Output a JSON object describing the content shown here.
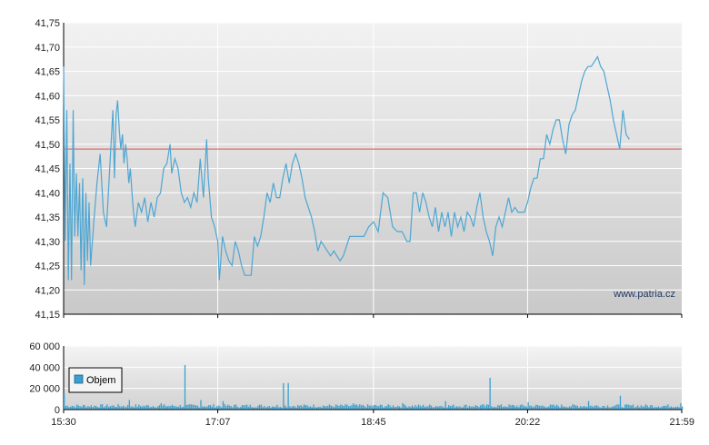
{
  "watermark": "www.patria.cz",
  "colors": {
    "price_line": "#4ea6d2",
    "reference_line": "#e05050",
    "volume_bar": "#3b9fd0",
    "grid": "#ffffff",
    "panel_top": "#f2f2f2",
    "panel_bottom": "#c9c9c9"
  },
  "chart_data": [
    {
      "type": "line",
      "name": "price",
      "title": "",
      "ylim": [
        41.15,
        41.75
      ],
      "y_ticks": [
        "41,15",
        "41,20",
        "41,25",
        "41,30",
        "41,35",
        "41,40",
        "41,45",
        "41,50",
        "41,55",
        "41,60",
        "41,65",
        "41,70",
        "41,75"
      ],
      "x_ticks": [
        "15:30",
        "17:07",
        "18:45",
        "20:22",
        "21:59"
      ],
      "xlim": [
        "15:30",
        "21:59"
      ],
      "grid": true,
      "reference_line": 41.49,
      "series": [
        {
          "values": [
            [
              "15:30",
              41.66
            ],
            [
              "15:31",
              41.3
            ],
            [
              "15:32",
              41.57
            ],
            [
              "15:33",
              41.22
            ],
            [
              "15:34",
              41.46
            ],
            [
              "15:35",
              41.22
            ],
            [
              "15:36",
              41.57
            ],
            [
              "15:37",
              41.31
            ],
            [
              "15:38",
              41.44
            ],
            [
              "15:39",
              41.31
            ],
            [
              "15:40",
              41.42
            ],
            [
              "15:41",
              41.24
            ],
            [
              "15:42",
              41.43
            ],
            [
              "15:43",
              41.21
            ],
            [
              "15:44",
              41.4
            ],
            [
              "15:45",
              41.26
            ],
            [
              "15:46",
              41.38
            ],
            [
              "15:47",
              41.25
            ],
            [
              "15:49",
              41.34
            ],
            [
              "15:51",
              41.42
            ],
            [
              "15:53",
              41.48
            ],
            [
              "15:55",
              41.36
            ],
            [
              "15:57",
              41.33
            ],
            [
              "15:59",
              41.45
            ],
            [
              "16:01",
              41.57
            ],
            [
              "16:02",
              41.43
            ],
            [
              "16:03",
              41.56
            ],
            [
              "16:04",
              41.59
            ],
            [
              "16:05",
              41.53
            ],
            [
              "16:06",
              41.49
            ],
            [
              "16:07",
              41.52
            ],
            [
              "16:08",
              41.46
            ],
            [
              "16:09",
              41.5
            ],
            [
              "16:10",
              41.47
            ],
            [
              "16:11",
              41.42
            ],
            [
              "16:12",
              41.45
            ],
            [
              "16:13",
              41.4
            ],
            [
              "16:14",
              41.36
            ],
            [
              "16:15",
              41.33
            ],
            [
              "16:17",
              41.38
            ],
            [
              "16:19",
              41.36
            ],
            [
              "16:21",
              41.39
            ],
            [
              "16:23",
              41.34
            ],
            [
              "16:25",
              41.38
            ],
            [
              "16:27",
              41.35
            ],
            [
              "16:29",
              41.39
            ],
            [
              "16:31",
              41.4
            ],
            [
              "16:33",
              41.45
            ],
            [
              "16:35",
              41.46
            ],
            [
              "16:37",
              41.5
            ],
            [
              "16:38",
              41.44
            ],
            [
              "16:40",
              41.47
            ],
            [
              "16:42",
              41.45
            ],
            [
              "16:44",
              41.4
            ],
            [
              "16:46",
              41.38
            ],
            [
              "16:48",
              41.39
            ],
            [
              "16:50",
              41.37
            ],
            [
              "16:52",
              41.4
            ],
            [
              "16:54",
              41.38
            ],
            [
              "16:56",
              41.47
            ],
            [
              "16:58",
              41.39
            ],
            [
              "17:00",
              41.51
            ],
            [
              "17:01",
              41.43
            ],
            [
              "17:03",
              41.35
            ],
            [
              "17:05",
              41.33
            ],
            [
              "17:07",
              41.3
            ],
            [
              "17:08",
              41.22
            ],
            [
              "17:10",
              41.31
            ],
            [
              "17:12",
              41.28
            ],
            [
              "17:14",
              41.26
            ],
            [
              "17:16",
              41.25
            ],
            [
              "17:18",
              41.3
            ],
            [
              "17:20",
              41.28
            ],
            [
              "17:22",
              41.25
            ],
            [
              "17:24",
              41.23
            ],
            [
              "17:26",
              41.23
            ],
            [
              "17:28",
              41.23
            ],
            [
              "17:30",
              41.31
            ],
            [
              "17:32",
              41.29
            ],
            [
              "17:34",
              41.31
            ],
            [
              "17:36",
              41.35
            ],
            [
              "17:38",
              41.4
            ],
            [
              "17:40",
              41.38
            ],
            [
              "17:42",
              41.42
            ],
            [
              "17:44",
              41.39
            ],
            [
              "17:46",
              41.39
            ],
            [
              "17:48",
              41.43
            ],
            [
              "17:50",
              41.46
            ],
            [
              "17:52",
              41.42
            ],
            [
              "17:54",
              41.46
            ],
            [
              "17:56",
              41.48
            ],
            [
              "17:58",
              41.46
            ],
            [
              "18:00",
              41.43
            ],
            [
              "18:02",
              41.39
            ],
            [
              "18:04",
              41.37
            ],
            [
              "18:06",
              41.35
            ],
            [
              "18:08",
              41.32
            ],
            [
              "18:10",
              41.28
            ],
            [
              "18:12",
              41.3
            ],
            [
              "18:14",
              41.29
            ],
            [
              "18:16",
              41.28
            ],
            [
              "18:18",
              41.27
            ],
            [
              "18:20",
              41.28
            ],
            [
              "18:22",
              41.27
            ],
            [
              "18:24",
              41.26
            ],
            [
              "18:26",
              41.27
            ],
            [
              "18:28",
              41.29
            ],
            [
              "18:30",
              41.31
            ],
            [
              "18:33",
              41.31
            ],
            [
              "18:36",
              41.31
            ],
            [
              "18:39",
              41.31
            ],
            [
              "18:42",
              41.33
            ],
            [
              "18:45",
              41.34
            ],
            [
              "18:48",
              41.32
            ],
            [
              "18:51",
              41.4
            ],
            [
              "18:54",
              41.39
            ],
            [
              "18:57",
              41.33
            ],
            [
              "19:00",
              41.32
            ],
            [
              "19:03",
              41.32
            ],
            [
              "19:06",
              41.3
            ],
            [
              "19:08",
              41.3
            ],
            [
              "19:10",
              41.4
            ],
            [
              "19:12",
              41.4
            ],
            [
              "19:14",
              41.36
            ],
            [
              "19:16",
              41.4
            ],
            [
              "19:18",
              41.38
            ],
            [
              "19:20",
              41.35
            ],
            [
              "19:22",
              41.33
            ],
            [
              "19:24",
              41.37
            ],
            [
              "19:26",
              41.32
            ],
            [
              "19:28",
              41.36
            ],
            [
              "19:30",
              41.33
            ],
            [
              "19:32",
              41.36
            ],
            [
              "19:34",
              41.31
            ],
            [
              "19:36",
              41.36
            ],
            [
              "19:38",
              41.33
            ],
            [
              "19:40",
              41.35
            ],
            [
              "19:42",
              41.32
            ],
            [
              "19:44",
              41.36
            ],
            [
              "19:46",
              41.35
            ],
            [
              "19:48",
              41.33
            ],
            [
              "19:50",
              41.37
            ],
            [
              "19:52",
              41.4
            ],
            [
              "19:54",
              41.35
            ],
            [
              "19:56",
              41.32
            ],
            [
              "19:58",
              41.3
            ],
            [
              "20:00",
              41.27
            ],
            [
              "20:02",
              41.33
            ],
            [
              "20:04",
              41.35
            ],
            [
              "20:06",
              41.33
            ],
            [
              "20:08",
              41.36
            ],
            [
              "20:10",
              41.39
            ],
            [
              "20:12",
              41.36
            ],
            [
              "20:14",
              41.37
            ],
            [
              "20:16",
              41.36
            ],
            [
              "20:18",
              41.36
            ],
            [
              "20:20",
              41.36
            ],
            [
              "20:22",
              41.38
            ],
            [
              "20:24",
              41.41
            ],
            [
              "20:26",
              41.43
            ],
            [
              "20:28",
              41.43
            ],
            [
              "20:30",
              41.47
            ],
            [
              "20:32",
              41.47
            ],
            [
              "20:34",
              41.52
            ],
            [
              "20:36",
              41.5
            ],
            [
              "20:38",
              41.53
            ],
            [
              "20:40",
              41.55
            ],
            [
              "20:42",
              41.55
            ],
            [
              "20:44",
              41.51
            ],
            [
              "20:46",
              41.48
            ],
            [
              "20:48",
              41.54
            ],
            [
              "20:50",
              41.56
            ],
            [
              "20:52",
              41.57
            ],
            [
              "20:54",
              41.6
            ],
            [
              "20:56",
              41.63
            ],
            [
              "20:58",
              41.65
            ],
            [
              "21:00",
              41.66
            ],
            [
              "21:02",
              41.66
            ],
            [
              "21:04",
              41.67
            ],
            [
              "21:06",
              41.68
            ],
            [
              "21:08",
              41.66
            ],
            [
              "21:10",
              41.65
            ],
            [
              "21:12",
              41.62
            ],
            [
              "21:14",
              41.59
            ],
            [
              "21:16",
              41.55
            ],
            [
              "21:18",
              41.52
            ],
            [
              "21:20",
              41.49
            ],
            [
              "21:22",
              41.57
            ],
            [
              "21:24",
              41.52
            ],
            [
              "21:26",
              41.51
            ]
          ]
        }
      ]
    },
    {
      "type": "bar",
      "name": "volume",
      "title": "",
      "ylim": [
        0,
        60000
      ],
      "y_ticks": [
        "0",
        "20 000",
        "40 000",
        "60 000"
      ],
      "x_ticks": [
        "15:30",
        "17:07",
        "18:45",
        "20:22",
        "21:59"
      ],
      "grid": true,
      "legend": {
        "placement": "top-left",
        "entries": [
          "Objem"
        ]
      },
      "base_value": 3500,
      "spikes": [
        {
          "x": "15:30",
          "value": 15000
        },
        {
          "x": "16:11",
          "value": 9000
        },
        {
          "x": "16:31",
          "value": 6000
        },
        {
          "x": "16:46",
          "value": 42000
        },
        {
          "x": "16:56",
          "value": 9000
        },
        {
          "x": "17:10",
          "value": 8000
        },
        {
          "x": "17:48",
          "value": 25000
        },
        {
          "x": "17:51",
          "value": 25000
        },
        {
          "x": "18:32",
          "value": 6000
        },
        {
          "x": "19:03",
          "value": 6000
        },
        {
          "x": "19:30",
          "value": 8000
        },
        {
          "x": "19:58",
          "value": 30000
        },
        {
          "x": "20:22",
          "value": 7000
        },
        {
          "x": "21:00",
          "value": 8000
        },
        {
          "x": "21:20",
          "value": 13000
        },
        {
          "x": "21:58",
          "value": 6000
        }
      ]
    }
  ]
}
